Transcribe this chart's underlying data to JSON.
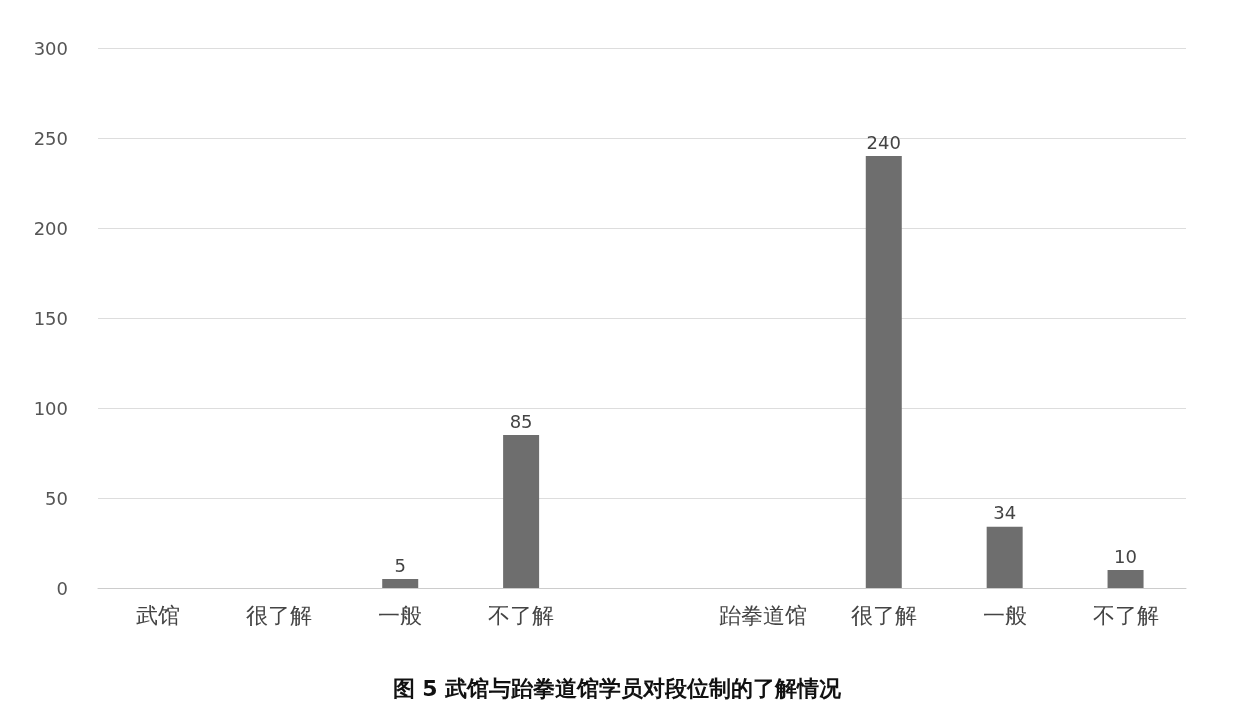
{
  "chart_data": {
    "type": "bar",
    "title": "图 5 武馆与跆拳道馆学员对段位制的了解情况",
    "categories": [
      "武馆",
      "很了解",
      "一般",
      "不了解",
      null,
      "跆拳道馆",
      "很了解",
      "一般",
      "不了解"
    ],
    "values": [
      null,
      null,
      5,
      85,
      null,
      null,
      240,
      34,
      10
    ],
    "value_labels": [
      null,
      null,
      "5",
      "85",
      null,
      null,
      "240",
      "34",
      "10"
    ],
    "color": "#6e6e6e",
    "ylim": [
      0,
      300
    ],
    "yticks": [
      0,
      50,
      100,
      150,
      200,
      250,
      300
    ],
    "grid": "y"
  }
}
